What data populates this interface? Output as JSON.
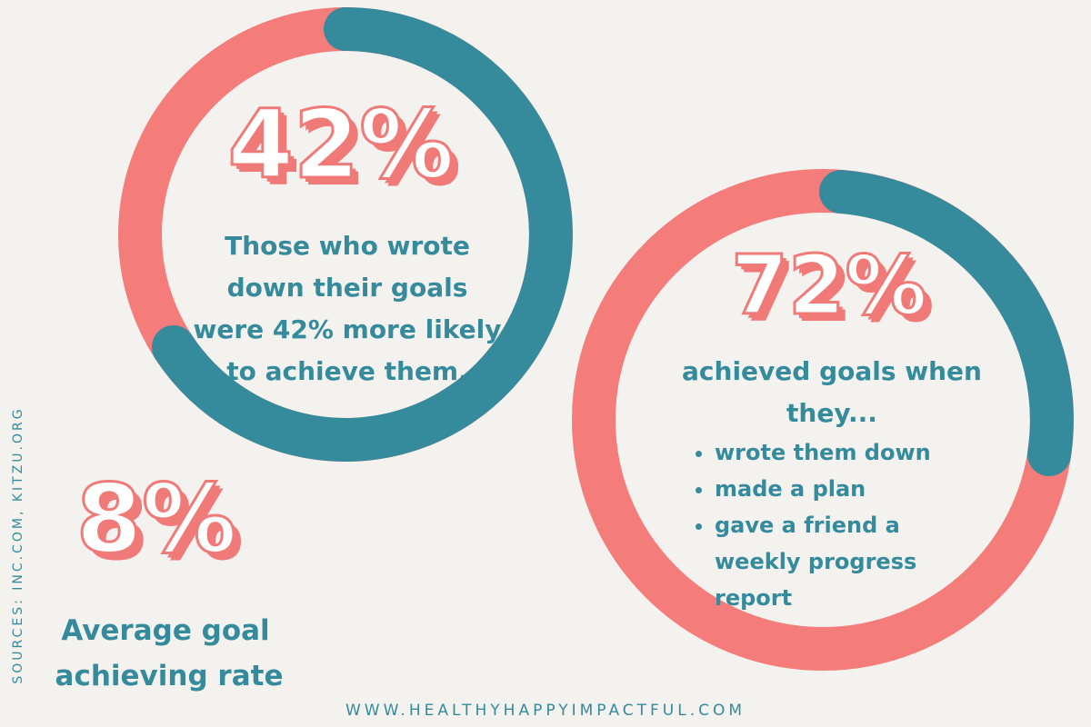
{
  "stats": [
    {
      "figure": "42%",
      "description_lines": [
        "Those who wrote",
        "down their goals",
        "were 42% more likely",
        "to achieve them."
      ]
    },
    {
      "figure": "72%",
      "description_lines": [
        "achieved goals when",
        "they..."
      ],
      "bullets": [
        "wrote them down",
        "made a plan",
        "gave a friend a weekly progress report"
      ]
    },
    {
      "figure": "8%",
      "description_lines": [
        "Average goal",
        "achieving rate"
      ]
    }
  ],
  "sources": "SOURCES: INC.COM, KITZU.ORG",
  "footer": "WWW.HEALTHYHAPPYIMPACTFUL.COM"
}
